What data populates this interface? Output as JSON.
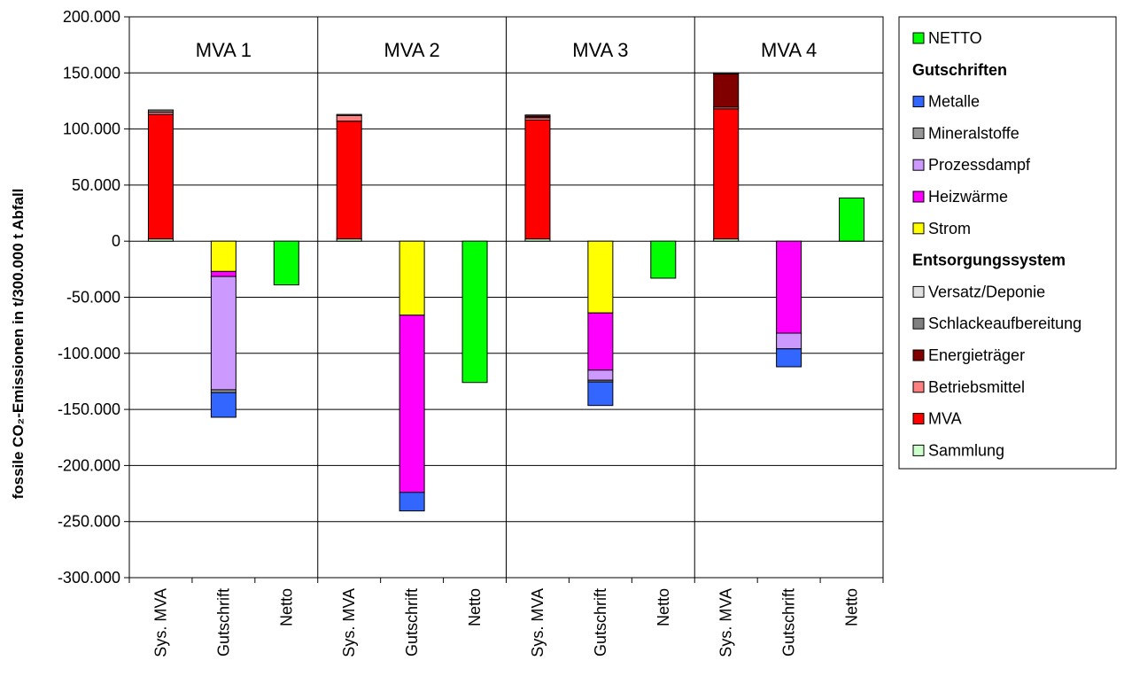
{
  "chart_data": {
    "type": "bar",
    "stacked": true,
    "ylabel": "fossile CO₂-Emissionen in t/300.000 t Abfall",
    "ylim": [
      -300000,
      200000
    ],
    "ytick_step": 50000,
    "ytick_labels": [
      "200.000",
      "150.000",
      "100.000",
      "50.000",
      "0",
      "-50.000",
      "-100.000",
      "-150.000",
      "-200.000",
      "-250.000",
      "-300.000"
    ],
    "grid": true,
    "legend_position": "right",
    "groups": [
      "MVA 1",
      "MVA 2",
      "MVA 3",
      "MVA 4"
    ],
    "categories": [
      "Sys. MVA",
      "Gutschrift",
      "Netto",
      "Sys. MVA",
      "Gutschrift",
      "Netto",
      "Sys. MVA",
      "Gutschrift",
      "Netto",
      "Sys. MVA",
      "Gutschrift",
      "Netto"
    ],
    "series": [
      {
        "name": "Sammlung",
        "color": "#ccffcc",
        "values": [
          2000,
          0,
          0,
          2000,
          0,
          0,
          2000,
          0,
          0,
          2000,
          0,
          0
        ]
      },
      {
        "name": "MVA",
        "color": "#ff0000",
        "values": [
          111000,
          0,
          0,
          105000,
          0,
          0,
          106000,
          0,
          0,
          116000,
          0,
          0
        ]
      },
      {
        "name": "Betriebsmittel",
        "color": "#ff8080",
        "values": [
          2000,
          0,
          0,
          5000,
          0,
          0,
          2000,
          0,
          0,
          1500,
          0,
          0
        ]
      },
      {
        "name": "Energieträger",
        "color": "#800000",
        "values": [
          0,
          0,
          0,
          0,
          0,
          0,
          1500,
          0,
          0,
          29500,
          0,
          0
        ]
      },
      {
        "name": "Schlackeaufbereitung",
        "color": "#808080",
        "values": [
          2000,
          0,
          0,
          1000,
          0,
          0,
          1000,
          0,
          0,
          1000,
          0,
          0
        ]
      },
      {
        "name": "Versatz/Deponie",
        "color": "#e0e0e0",
        "values": [
          0,
          0,
          0,
          0,
          0,
          0,
          0,
          0,
          0,
          0,
          0,
          0
        ]
      },
      {
        "name": "Strom",
        "color": "#ffff00",
        "values": [
          0,
          -27000,
          0,
          0,
          -66000,
          0,
          0,
          -64000,
          0,
          0,
          0,
          0
        ]
      },
      {
        "name": "Heizwärme",
        "color": "#ff00ff",
        "values": [
          0,
          -4500,
          0,
          0,
          -158000,
          0,
          0,
          -51000,
          0,
          0,
          -82000,
          0
        ]
      },
      {
        "name": "Prozessdampf",
        "color": "#cc99ff",
        "values": [
          0,
          -101000,
          0,
          0,
          0,
          0,
          0,
          -9000,
          0,
          0,
          -14000,
          0
        ]
      },
      {
        "name": "Mineralstoffe",
        "color": "#969696",
        "values": [
          0,
          -2500,
          0,
          0,
          0,
          0,
          0,
          -1500,
          0,
          0,
          0,
          0
        ]
      },
      {
        "name": "Metalle",
        "color": "#3366ff",
        "values": [
          0,
          -22000,
          0,
          0,
          -16500,
          0,
          0,
          -21000,
          0,
          0,
          -16000,
          0
        ]
      },
      {
        "name": "NETTO",
        "color": "#00ff00",
        "values": [
          0,
          0,
          -39000,
          0,
          0,
          -126000,
          0,
          0,
          -33000,
          0,
          0,
          38500
        ]
      }
    ],
    "legend": [
      {
        "type": "item",
        "label": "NETTO",
        "color": "#00ff00"
      },
      {
        "type": "header",
        "label": "Gutschriften"
      },
      {
        "type": "item",
        "label": "Metalle",
        "color": "#3366ff"
      },
      {
        "type": "item",
        "label": "Mineralstoffe",
        "color": "#969696"
      },
      {
        "type": "item",
        "label": "Prozessdampf",
        "color": "#cc99ff"
      },
      {
        "type": "item",
        "label": "Heizwärme",
        "color": "#ff00ff"
      },
      {
        "type": "item",
        "label": "Strom",
        "color": "#ffff00"
      },
      {
        "type": "header",
        "label": "Entsorgungssystem"
      },
      {
        "type": "item",
        "label": "Versatz/Deponie",
        "color": "#e0e0e0"
      },
      {
        "type": "item",
        "label": "Schlackeaufbereitung",
        "color": "#808080"
      },
      {
        "type": "item",
        "label": "Energieträger",
        "color": "#800000"
      },
      {
        "type": "item",
        "label": "Betriebsmittel",
        "color": "#ff8080"
      },
      {
        "type": "item",
        "label": "MVA",
        "color": "#ff0000"
      },
      {
        "type": "item",
        "label": "Sammlung",
        "color": "#ccffcc"
      }
    ]
  }
}
